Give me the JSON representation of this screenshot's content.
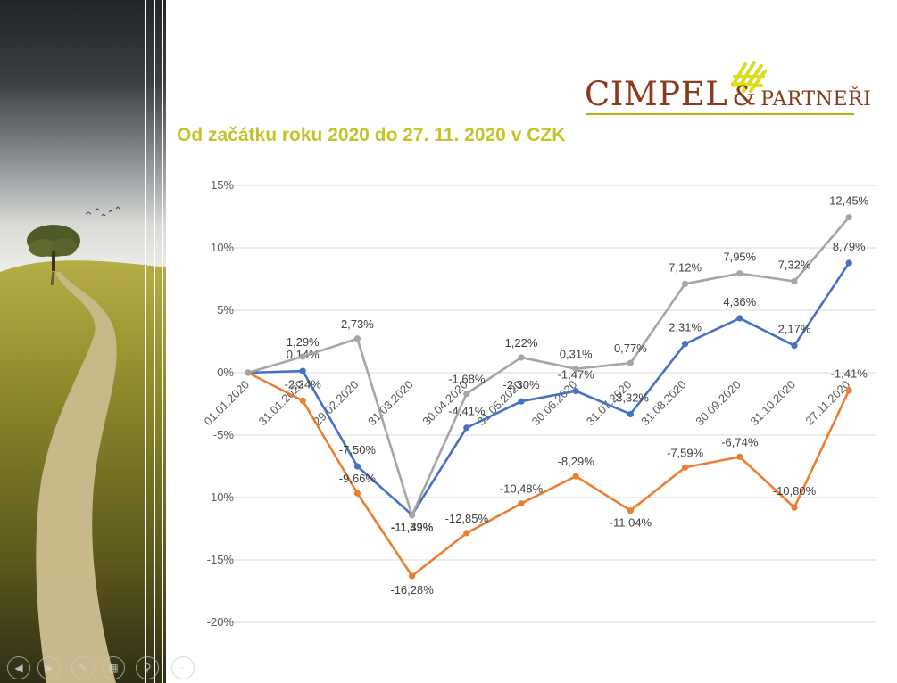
{
  "title": "Od začátku roku 2020 do 27. 11. 2020 v CZK",
  "logo": {
    "main": "CIMPEL",
    "amp": "&",
    "sub": "PARTNEŘI"
  },
  "colors": {
    "title": "#c3c32a",
    "logo_text": "#8b3a1c",
    "logo_mark": "#d9dd1a",
    "series": [
      "#4472c4",
      "#ed7d31",
      "#a5a5a5"
    ]
  },
  "controls": [
    "previous-icon",
    "next-icon",
    "pen-icon",
    "slides-icon",
    "zoom-icon",
    "more-icon"
  ],
  "chart_data": {
    "type": "line",
    "title": "",
    "xlabel": "",
    "ylabel": "",
    "ylim": [
      -20,
      15
    ],
    "yticks": [
      "15%",
      "10%",
      "5%",
      "0%",
      "-5%",
      "-10%",
      "-15%",
      "-20%"
    ],
    "ytick_values": [
      15,
      10,
      5,
      0,
      -5,
      -10,
      -15,
      -20
    ],
    "grid": true,
    "legend": "none",
    "categories": [
      "01.01.2020",
      "31.01.2020",
      "29.02.2020",
      "31.03.2020",
      "30.04.2020",
      "31.05.2020",
      "30.06.2020",
      "31.07.2020",
      "31.08.2020",
      "30.09.2020",
      "31.10.2020",
      "27.11.2020"
    ],
    "series": [
      {
        "values": [
          0,
          0.14,
          -7.5,
          -11.39,
          -4.41,
          -2.3,
          -1.47,
          -3.32,
          2.31,
          4.36,
          2.17,
          8.79
        ],
        "labels": [
          "",
          "0,14%",
          "-7,50%",
          "-11,39%",
          "-4,41%",
          "-2,30%",
          "-1,47%",
          "-3,32%",
          "2,31%",
          "4,36%",
          "2,17%",
          "8,79%"
        ]
      },
      {
        "values": [
          0,
          -2.24,
          -9.66,
          -16.28,
          -12.85,
          -10.48,
          -8.29,
          -11.04,
          -7.59,
          -6.74,
          -10.8,
          -1.41
        ],
        "labels": [
          "",
          "-2,24%",
          "-9,66%",
          "-16,28%",
          "-12,85%",
          "-10,48%",
          "-8,29%",
          "-11,04%",
          "-7,59%",
          "-6,74%",
          "-10,80%",
          "-1,41%"
        ]
      },
      {
        "values": [
          0,
          1.29,
          2.73,
          -11.42,
          -1.68,
          1.22,
          0.31,
          0.77,
          7.12,
          7.95,
          7.32,
          12.45
        ],
        "labels": [
          "",
          "1,29%",
          "2,73%",
          "-11,42%",
          "-1,68%",
          "1,22%",
          "0,31%",
          "0,77%",
          "7,12%",
          "7,95%",
          "7,32%",
          "12,45%"
        ]
      }
    ]
  }
}
